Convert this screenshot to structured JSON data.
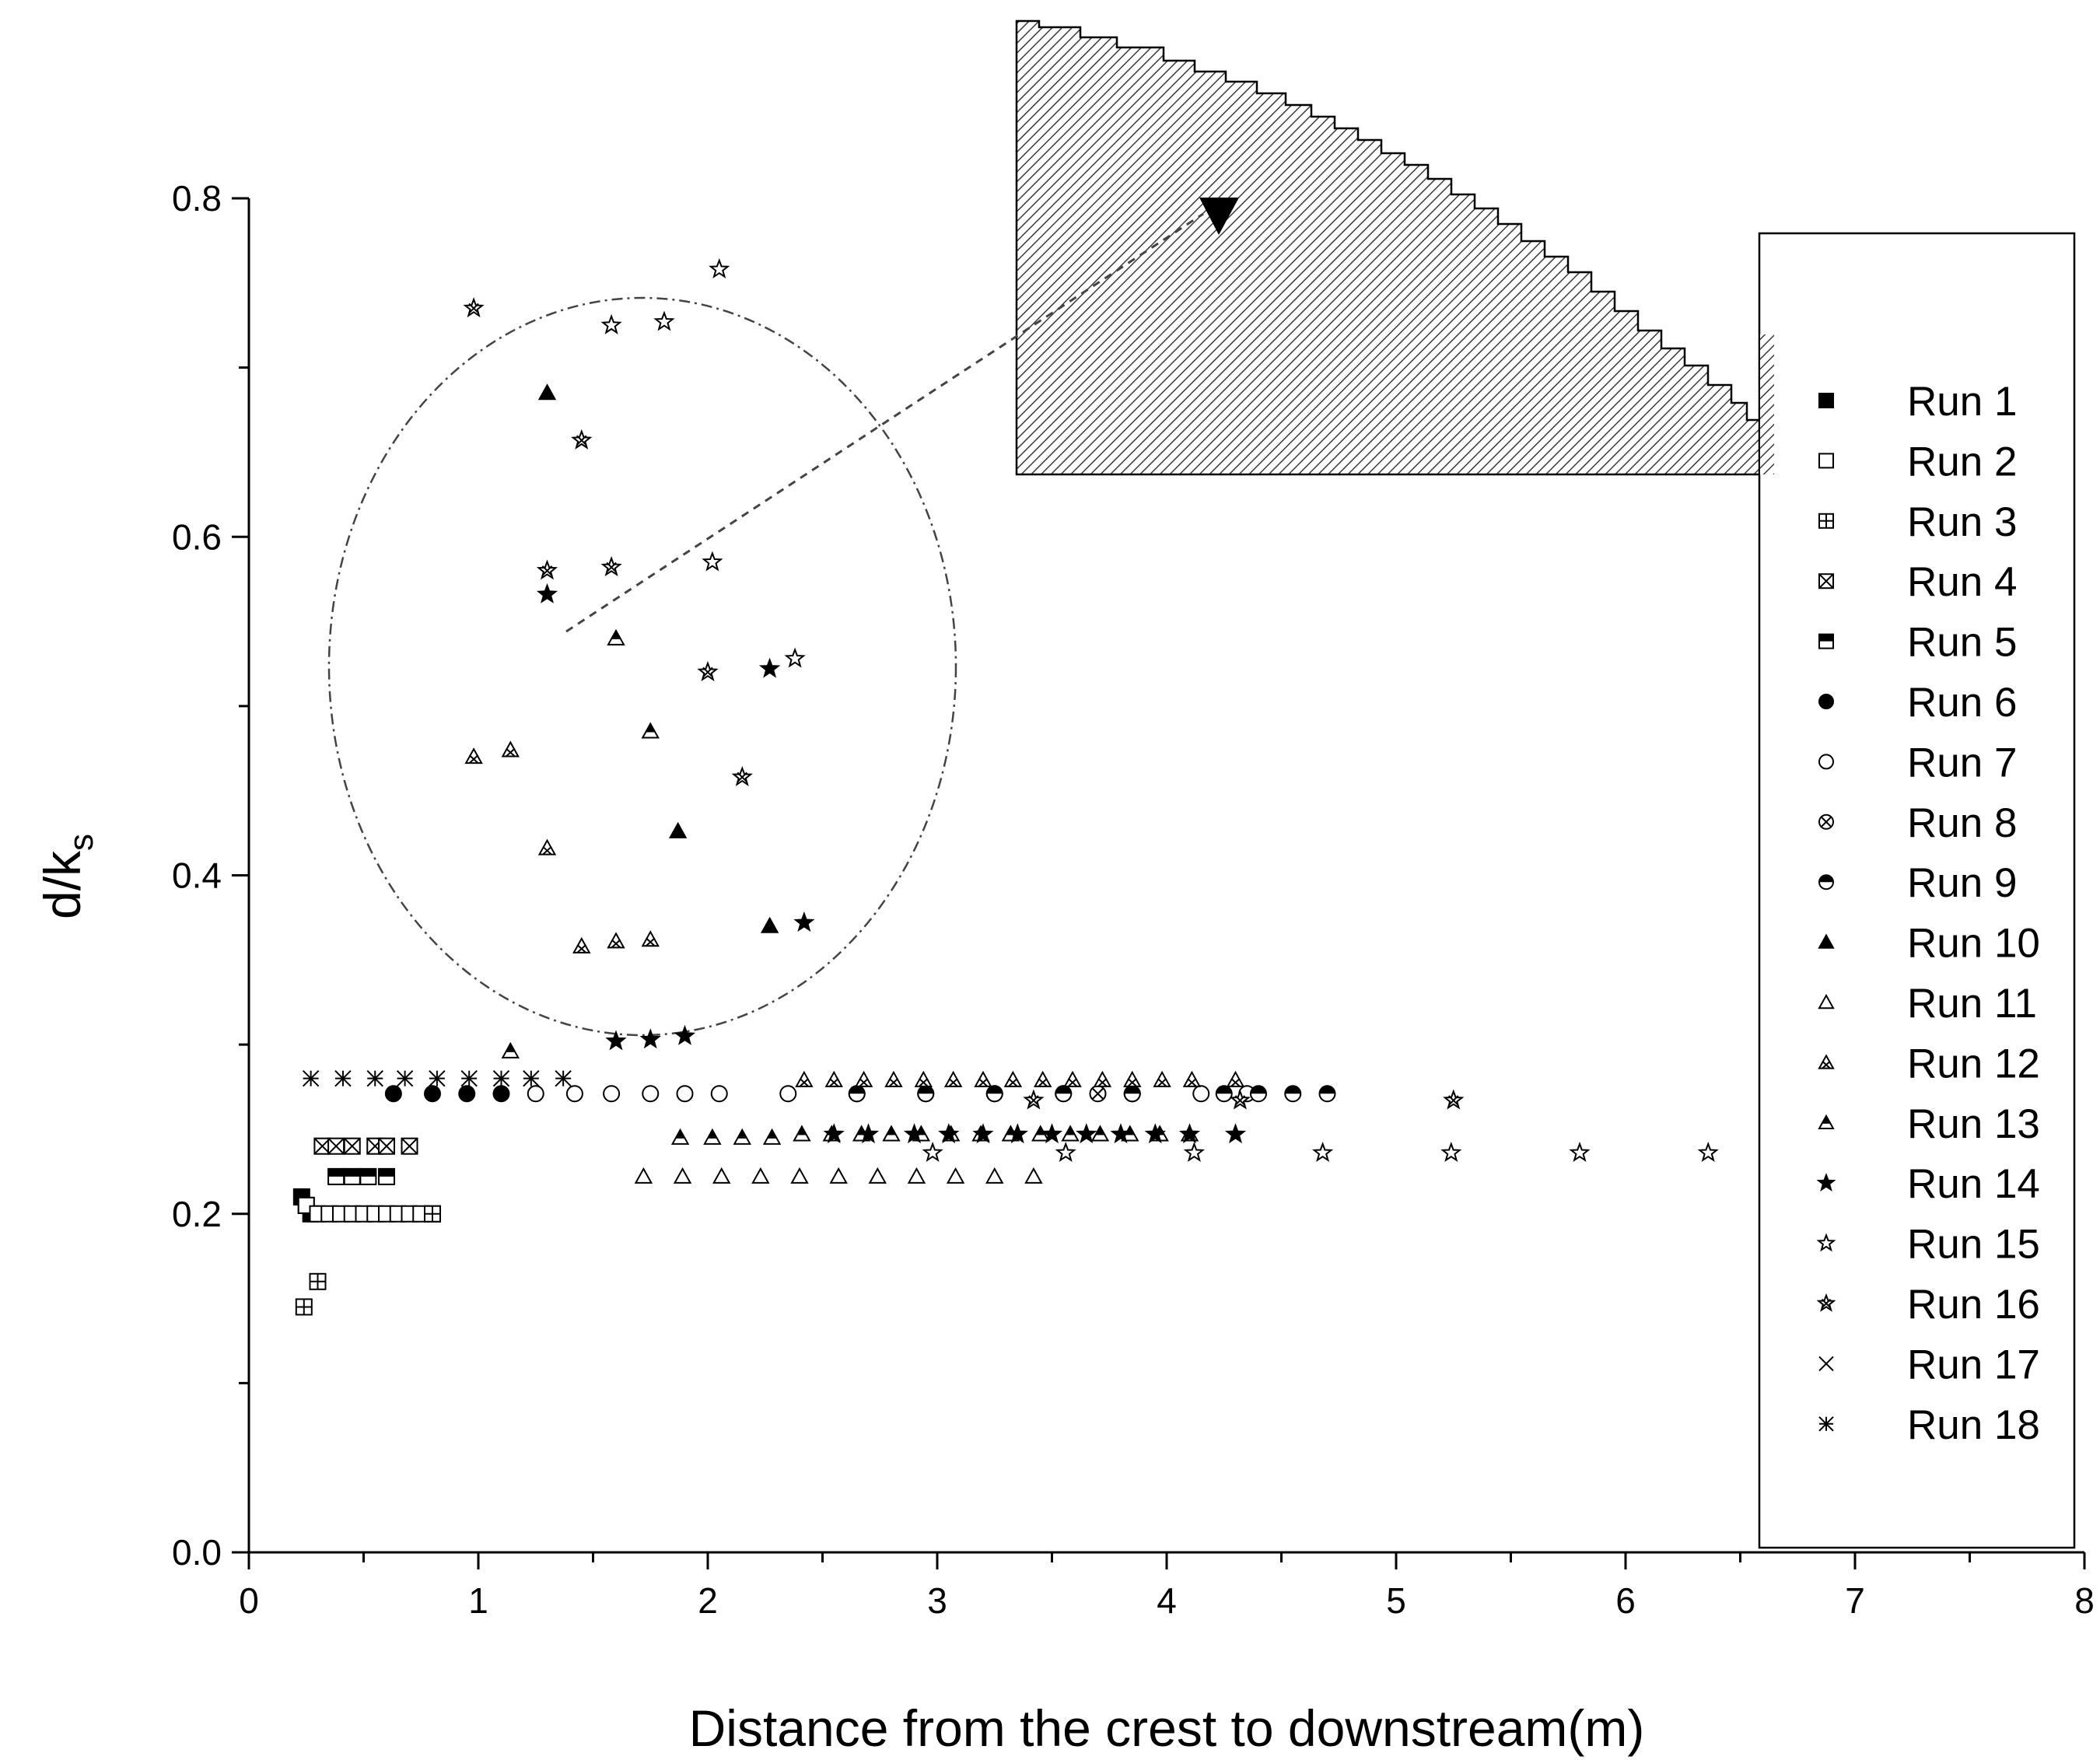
{
  "chart_data": {
    "type": "scatter",
    "xlabel": "Distance from the crest to downstream(m)",
    "ylabel_main": "d/k",
    "ylabel_sub": "s",
    "xlim": [
      0,
      8
    ],
    "ylim": [
      0,
      0.8
    ],
    "xticks": [
      "0",
      "1",
      "2",
      "3",
      "4",
      "5",
      "6",
      "7",
      "8"
    ],
    "yticks": [
      "0.0",
      "0.2",
      "0.4",
      "0.6",
      "0.8"
    ],
    "xtick_values": [
      0,
      1,
      2,
      3,
      4,
      5,
      6,
      7,
      8
    ],
    "ytick_values": [
      0,
      0.2,
      0.4,
      0.6,
      0.8
    ],
    "grid": false,
    "legend_position": "right",
    "annotations": [
      {
        "kind": "dash-dot-ellipse",
        "center": [
          1.72,
          0.516
        ],
        "radii": [
          1.36,
          0.228
        ]
      },
      {
        "kind": "dashed-arrow",
        "from": [
          1.4,
          0.545
        ],
        "to": [
          4.25,
          0.795
        ]
      },
      {
        "kind": "hatched-stepped-spillway-inset"
      }
    ],
    "series": [
      {
        "name": "Run 1",
        "marker": "square-filled",
        "x": [
          0.23,
          0.25,
          0.27
        ],
        "y": [
          0.21,
          0.205,
          0.2
        ]
      },
      {
        "name": "Run 2",
        "marker": "square-open",
        "x": [
          0.25,
          0.3,
          0.35,
          0.4,
          0.45,
          0.5,
          0.55,
          0.6,
          0.65,
          0.7,
          0.75,
          0.8
        ],
        "y": [
          0.205,
          0.2,
          0.2,
          0.2,
          0.2,
          0.2,
          0.2,
          0.2,
          0.2,
          0.2,
          0.2,
          0.2
        ]
      },
      {
        "name": "Run 3",
        "marker": "square-plus",
        "x": [
          0.24,
          0.3,
          0.8
        ],
        "y": [
          0.145,
          0.16,
          0.2
        ]
      },
      {
        "name": "Run 4",
        "marker": "square-x",
        "x": [
          0.32,
          0.38,
          0.45,
          0.55,
          0.6,
          0.7
        ],
        "y": [
          0.24,
          0.24,
          0.24,
          0.24,
          0.24,
          0.24
        ]
      },
      {
        "name": "Run 5",
        "marker": "square-half",
        "x": [
          0.38,
          0.45,
          0.52,
          0.6
        ],
        "y": [
          0.222,
          0.222,
          0.222,
          0.222
        ]
      },
      {
        "name": "Run 6",
        "marker": "circle-filled",
        "x": [
          0.63,
          0.8,
          0.95,
          1.1
        ],
        "y": [
          0.271,
          0.271,
          0.271,
          0.271
        ]
      },
      {
        "name": "Run 7",
        "marker": "circle-open",
        "x": [
          1.25,
          1.42,
          1.58,
          1.75,
          1.9,
          2.05,
          2.35,
          2.65,
          2.95,
          3.25,
          3.55,
          3.85,
          4.15,
          4.35
        ],
        "y": [
          0.271,
          0.271,
          0.271,
          0.271,
          0.271,
          0.271,
          0.271,
          0.271,
          0.271,
          0.271,
          0.271,
          0.271,
          0.271,
          0.271
        ]
      },
      {
        "name": "Run 8",
        "marker": "circle-x",
        "x": [
          3.7,
          3.85
        ],
        "y": [
          0.271,
          0.271
        ]
      },
      {
        "name": "Run 9",
        "marker": "circle-half",
        "x": [
          2.65,
          2.95,
          3.25,
          3.55,
          3.85,
          4.25,
          4.4,
          4.55,
          4.7
        ],
        "y": [
          0.271,
          0.271,
          0.271,
          0.271,
          0.271,
          0.271,
          0.271,
          0.271,
          0.271
        ]
      },
      {
        "name": "Run 10",
        "marker": "triangle-filled",
        "x": [
          1.3,
          1.87,
          2.27
        ],
        "y": [
          0.685,
          0.426,
          0.37
        ]
      },
      {
        "name": "Run 11",
        "marker": "triangle-open",
        "x": [
          1.72,
          1.89,
          2.06,
          2.23,
          2.4,
          2.57,
          2.74,
          2.91,
          3.08,
          3.25,
          3.42
        ],
        "y": [
          0.222,
          0.222,
          0.222,
          0.222,
          0.222,
          0.222,
          0.222,
          0.222,
          0.222,
          0.222,
          0.222
        ]
      },
      {
        "name": "Run 12",
        "marker": "triangle-x",
        "x": [
          0.98,
          1.14,
          1.3,
          1.45,
          1.6,
          1.75,
          2.42,
          2.55,
          2.68,
          2.81,
          2.94,
          3.07,
          3.2,
          3.33,
          3.46,
          3.59,
          3.72,
          3.85,
          3.98,
          4.11,
          4.3
        ],
        "y": [
          0.47,
          0.474,
          0.416,
          0.358,
          0.361,
          0.362,
          0.279,
          0.279,
          0.279,
          0.279,
          0.279,
          0.279,
          0.279,
          0.279,
          0.279,
          0.279,
          0.279,
          0.279,
          0.279,
          0.279,
          0.279
        ]
      },
      {
        "name": "Run 13",
        "marker": "triangle-half",
        "x": [
          1.14,
          1.6,
          1.75,
          1.88,
          2.02,
          2.15,
          2.28,
          2.41,
          2.54,
          2.67,
          2.8,
          2.93,
          3.06,
          3.19,
          3.32,
          3.45,
          3.58,
          3.71,
          3.84,
          3.97,
          4.1
        ],
        "y": [
          0.296,
          0.54,
          0.485,
          0.245,
          0.245,
          0.245,
          0.245,
          0.247,
          0.247,
          0.247,
          0.247,
          0.247,
          0.247,
          0.247,
          0.247,
          0.247,
          0.247,
          0.247,
          0.247,
          0.247,
          0.247
        ]
      },
      {
        "name": "Run 14",
        "marker": "star-filled",
        "x": [
          1.3,
          1.6,
          1.75,
          1.9,
          2.27,
          2.42,
          2.55,
          2.7,
          2.9,
          3.05,
          3.2,
          3.35,
          3.5,
          3.65,
          3.8,
          3.95,
          4.1,
          4.3
        ],
        "y": [
          0.566,
          0.302,
          0.303,
          0.305,
          0.522,
          0.372,
          0.247,
          0.247,
          0.247,
          0.247,
          0.247,
          0.247,
          0.247,
          0.247,
          0.247,
          0.247,
          0.247,
          0.247
        ]
      },
      {
        "name": "Run 15",
        "marker": "star-open",
        "x": [
          1.58,
          1.81,
          2.02,
          2.05,
          2.38,
          2.98,
          3.56,
          4.12,
          4.68,
          5.24,
          5.8,
          6.36
        ],
        "y": [
          0.725,
          0.727,
          0.585,
          0.758,
          0.528,
          0.236,
          0.236,
          0.236,
          0.236,
          0.236,
          0.236,
          0.236
        ]
      },
      {
        "name": "Run 16",
        "marker": "star-x",
        "x": [
          0.98,
          1.3,
          1.45,
          1.58,
          2.0,
          2.15,
          3.42,
          4.32,
          5.25
        ],
        "y": [
          0.735,
          0.58,
          0.657,
          0.582,
          0.52,
          0.458,
          0.267,
          0.267,
          0.267
        ]
      },
      {
        "name": "Run 17",
        "marker": "x",
        "x": [],
        "y": []
      },
      {
        "name": "Run 18",
        "marker": "asterisk",
        "x": [
          0.27,
          0.41,
          0.55,
          0.68,
          0.82,
          0.96,
          1.1,
          1.23,
          1.37
        ],
        "y": [
          0.28,
          0.28,
          0.28,
          0.28,
          0.28,
          0.28,
          0.28,
          0.28,
          0.28
        ]
      }
    ]
  }
}
